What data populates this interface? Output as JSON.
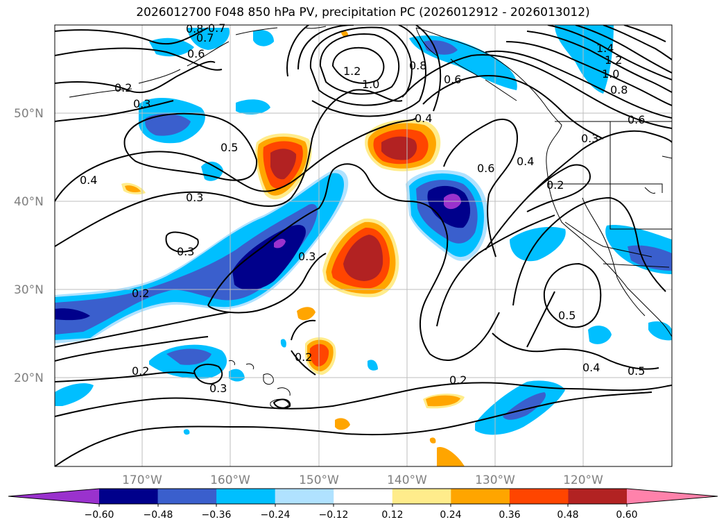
{
  "title": "2026012700 F048 850 hPa PV, precipitation PC (2026012912 - 2026013012)",
  "lat_labels": [
    "50°N",
    "40°N",
    "30°N",
    "20°N"
  ],
  "lon_labels": [
    "170°W",
    "160°W",
    "150°W",
    "140°W",
    "130°W",
    "120°W"
  ],
  "contour_labels": [
    "0.8",
    "0.7",
    "0.6",
    "0.7",
    "1.2",
    "1.0",
    "0.8",
    "0.6",
    "1.4",
    "1.2",
    "1.0",
    "0.8",
    "0.6",
    "0.2",
    "0.3",
    "0.5",
    "0.4",
    "0.3",
    "0.4",
    "0.6",
    "0.4",
    "0.3",
    "0.2",
    "0.3",
    "0.3",
    "0.2",
    "0.5",
    "0.2",
    "0.2",
    "0.3",
    "0.2",
    "0.4",
    "0.5"
  ],
  "colorbar": {
    "ticks": [
      "−0.60",
      "−0.48",
      "−0.36",
      "−0.24",
      "−0.12",
      "0.12",
      "0.24",
      "0.36",
      "0.48",
      "0.60"
    ],
    "colors": [
      "#9a32cd",
      "#00008b",
      "#3a5fcd",
      "#00bfff",
      "#b0e2ff",
      "#ffffff",
      "#ffec8b",
      "#ffa500",
      "#ff4500",
      "#b22222",
      "#ff82ab"
    ]
  },
  "fill_colors": {
    "neg1": "#b0e2ff",
    "neg2": "#00bfff",
    "neg3": "#3a5fcd",
    "neg4": "#00008b",
    "neg5": "#9a32cd",
    "pos1": "#ffec8b",
    "pos2": "#ffa500",
    "pos3": "#ff4500",
    "pos4": "#b22222"
  }
}
